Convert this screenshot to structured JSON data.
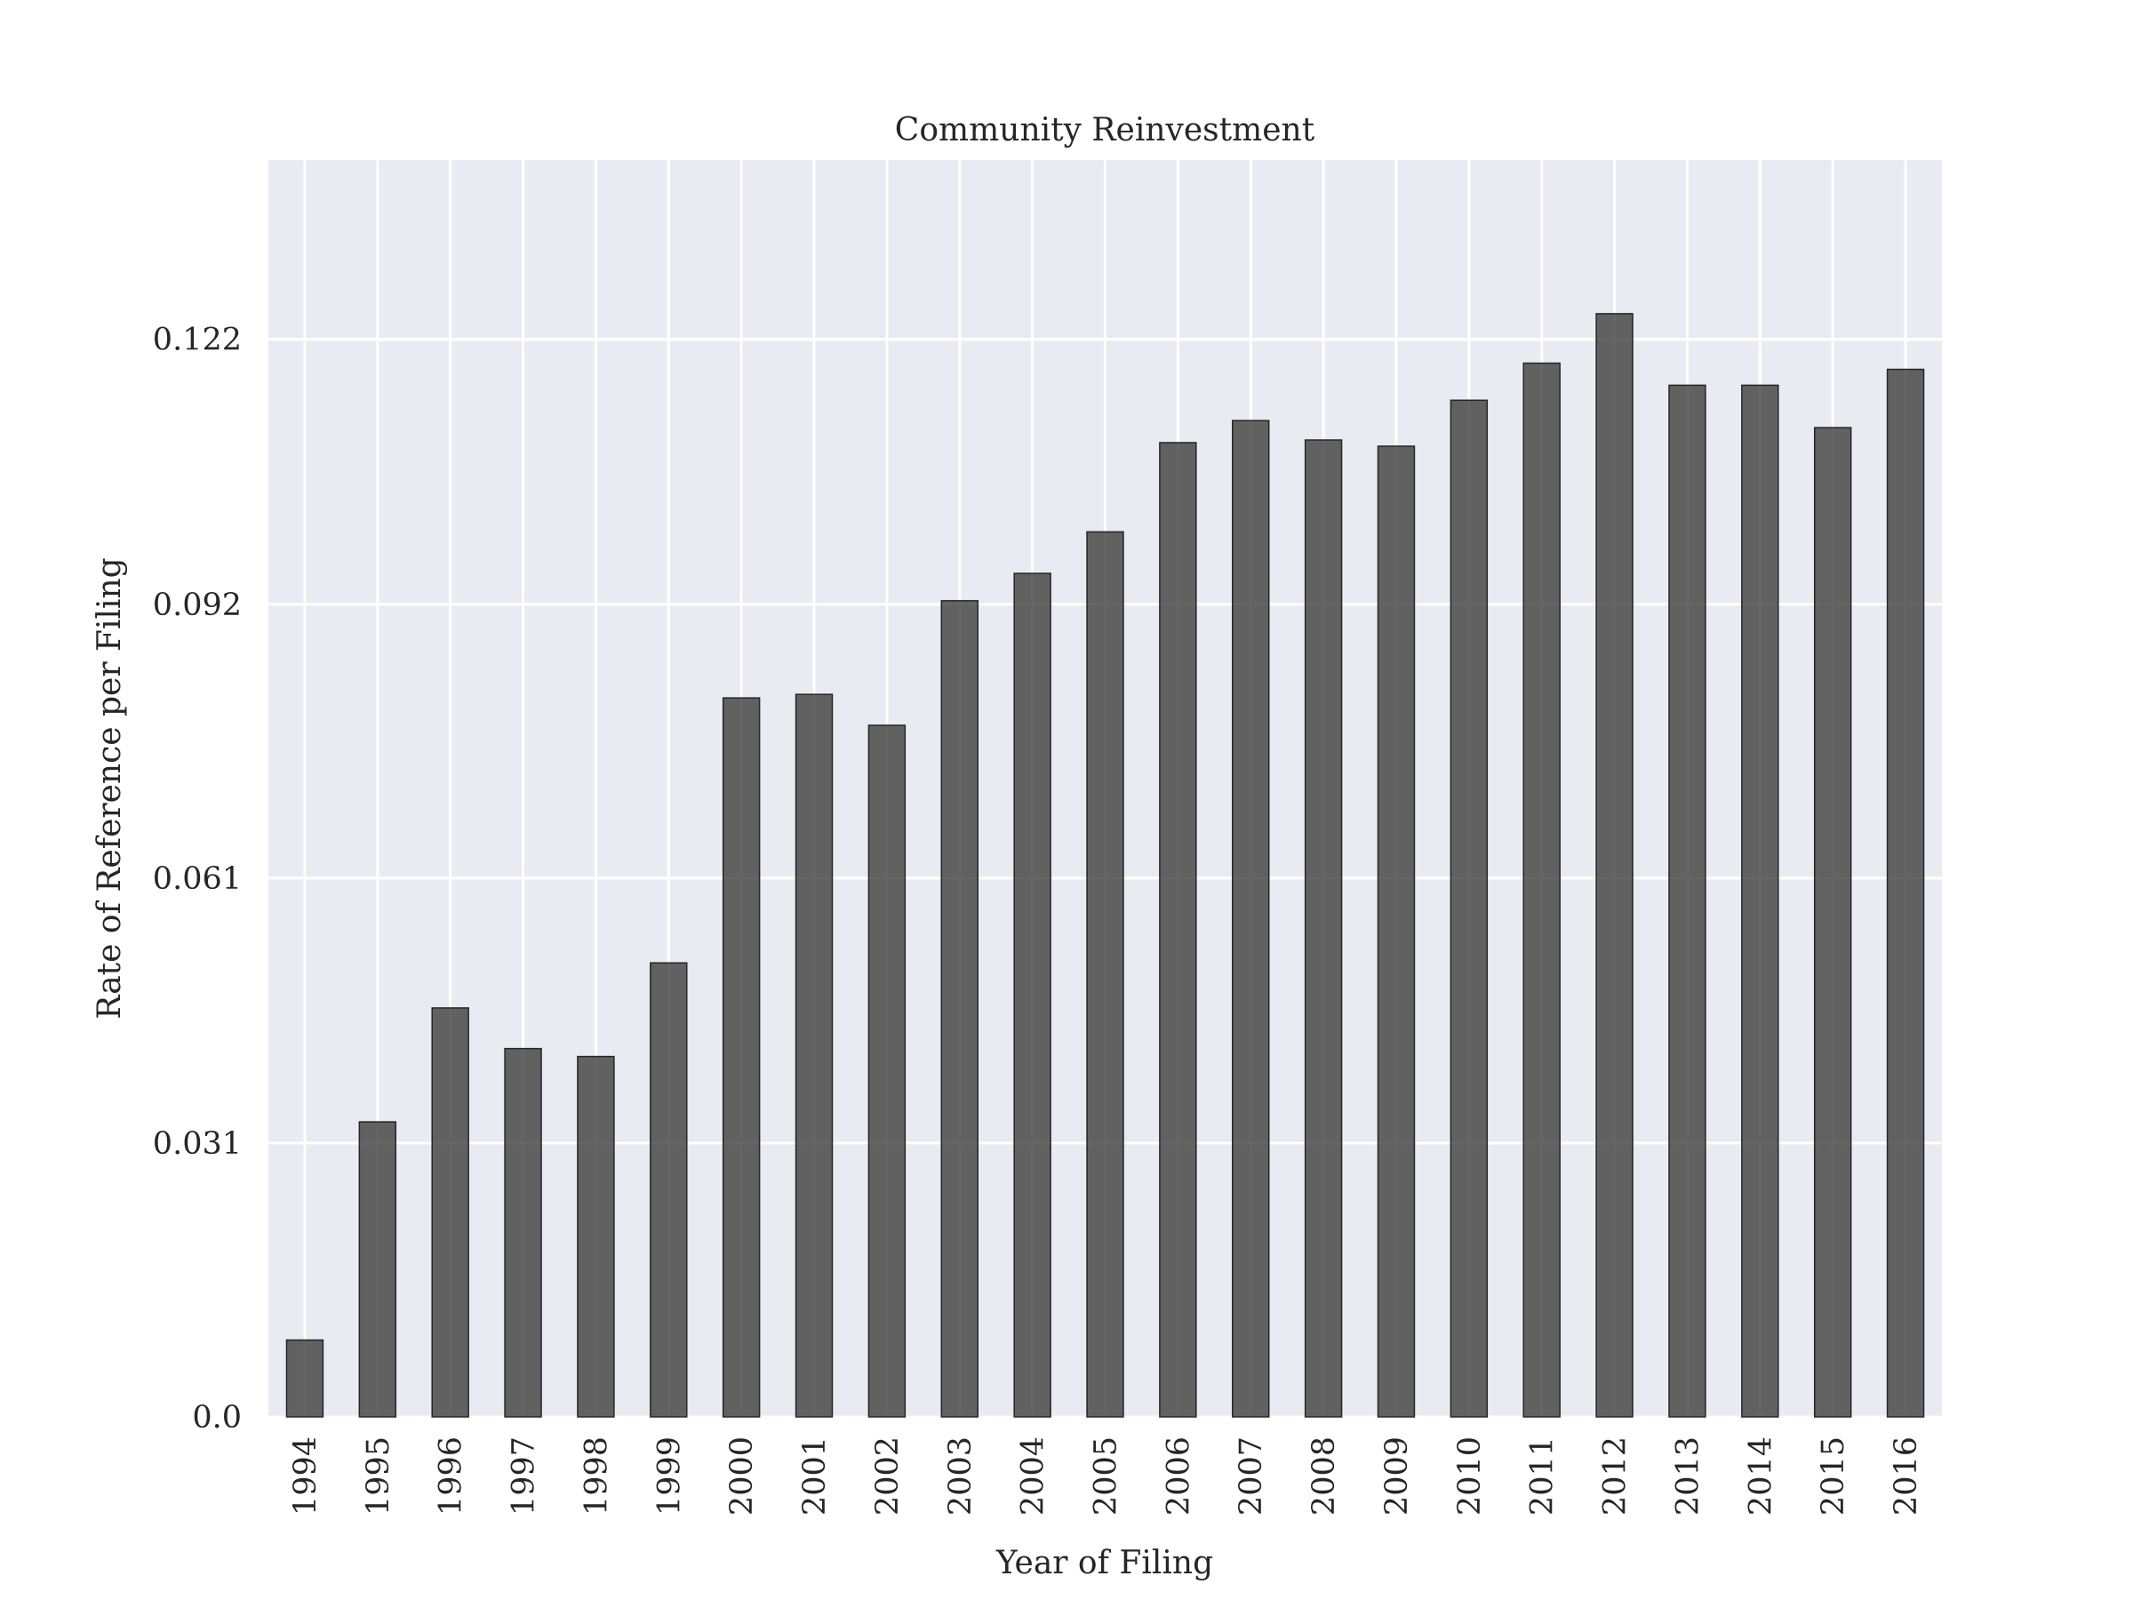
{
  "chart_data": {
    "type": "bar",
    "title": "Community Reinvestment",
    "xlabel": "Year of Filing",
    "ylabel": "Rate of Reference per Filing",
    "categories": [
      "1994",
      "1995",
      "1996",
      "1997",
      "1998",
      "1999",
      "2000",
      "2001",
      "2002",
      "2003",
      "2004",
      "2005",
      "2006",
      "2007",
      "2008",
      "2009",
      "2010",
      "2011",
      "2012",
      "2013",
      "2014",
      "2015",
      "2016"
    ],
    "values": [
      0.0087,
      0.0334,
      0.0463,
      0.0417,
      0.0408,
      0.0514,
      0.0814,
      0.0818,
      0.0783,
      0.0924,
      0.0955,
      0.1002,
      0.1103,
      0.1128,
      0.1106,
      0.1099,
      0.1151,
      0.1193,
      0.1249,
      0.1168,
      0.1168,
      0.112,
      0.1186
    ],
    "yticks": [
      0.0,
      0.031,
      0.061,
      0.092,
      0.122
    ],
    "ytick_labels": [
      "0.0",
      "0.031",
      "0.061",
      "0.092",
      "0.122"
    ],
    "ylim": [
      0,
      0.1423
    ],
    "grid": true,
    "colors": {
      "plot_background": "#eaeaf2",
      "bar_fill": "#3a3a3a",
      "grid": "#ffffff"
    }
  }
}
